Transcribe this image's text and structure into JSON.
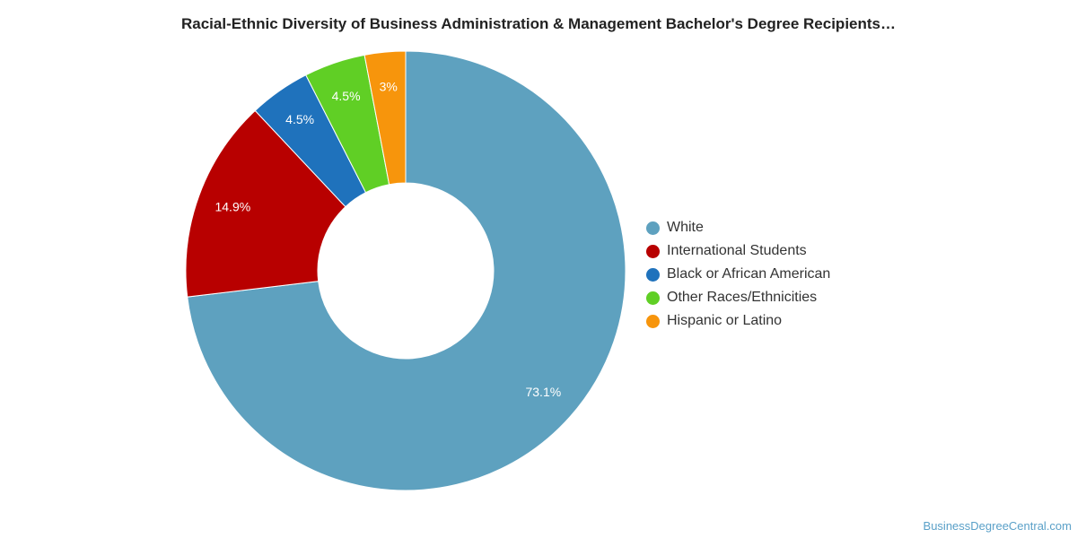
{
  "chart_data": {
    "type": "pie",
    "title": "Racial-Ethnic Diversity of Business Administration & Management Bachelor's Degree Recipients…",
    "donut": true,
    "legend_position": "right",
    "slices": [
      {
        "label": "White",
        "value": 73.1,
        "display": "73.1%",
        "color": "#5ea1bf"
      },
      {
        "label": "International Students",
        "value": 14.9,
        "display": "14.9%",
        "color": "#b80000"
      },
      {
        "label": "Black or African American",
        "value": 4.5,
        "display": "4.5%",
        "color": "#1f72bc"
      },
      {
        "label": "Other Races/Ethnicities",
        "value": 4.5,
        "display": "4.5%",
        "color": "#60cf25"
      },
      {
        "label": "Hispanic or Latino",
        "value": 3.0,
        "display": "3%",
        "color": "#f7950c"
      }
    ]
  },
  "footer": {
    "watermark": "BusinessDegreeCentral.com"
  }
}
